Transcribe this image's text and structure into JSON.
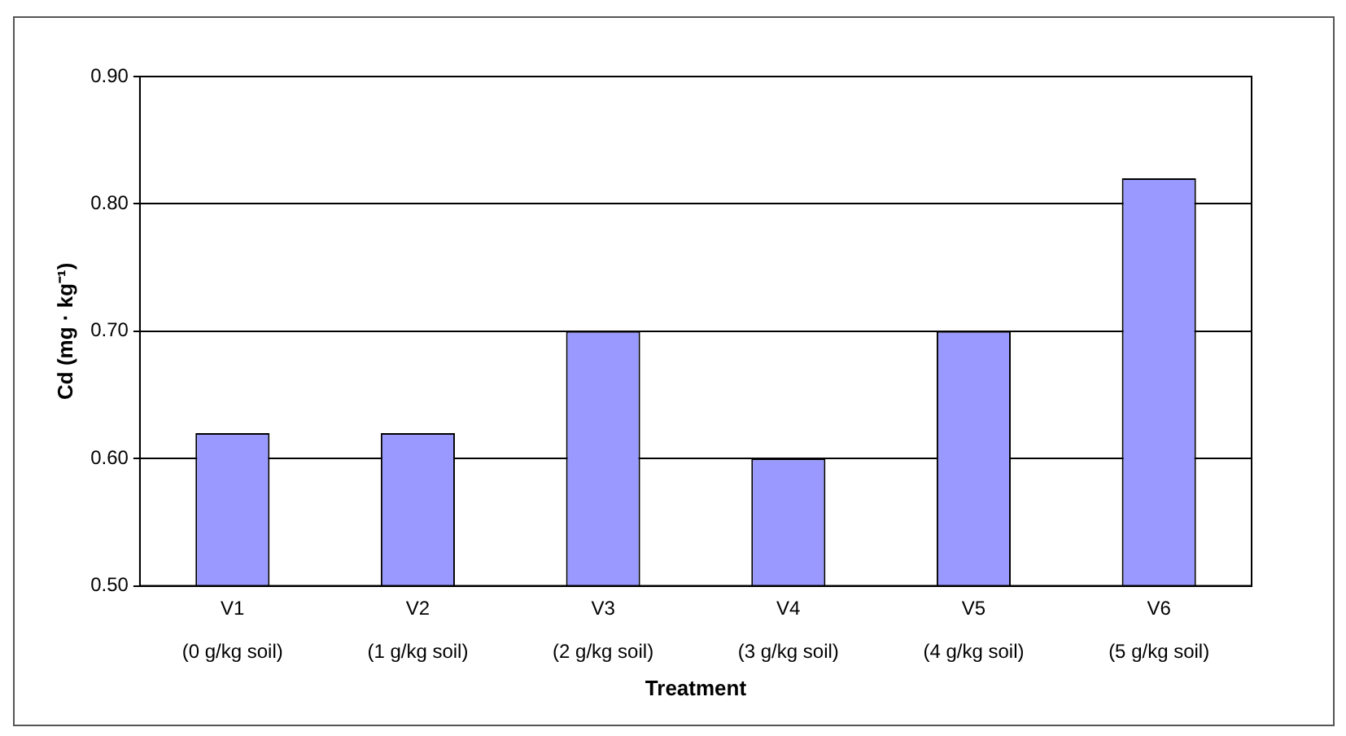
{
  "chart_data": {
    "type": "bar",
    "xlabel": "Treatment",
    "ylabel": "Cd (mg · kg⁻¹)",
    "categories": [
      "V1\n(0 g/kg soil)",
      "V2\n(1 g/kg soil)",
      "V3\n(2 g/kg soil)",
      "V4\n(3 g/kg soil)",
      "V5\n(4 g/kg soil)",
      "V6\n(5 g/kg soil)"
    ],
    "values": [
      0.62,
      0.62,
      0.7,
      0.6,
      0.7,
      0.82
    ],
    "color": "#9999ff",
    "ylim": [
      0.5,
      0.9
    ],
    "yticks": [
      {
        "value": 0.5,
        "label": "0.50"
      },
      {
        "value": 0.6,
        "label": "0.60"
      },
      {
        "value": 0.7,
        "label": "0.70"
      },
      {
        "value": 0.8,
        "label": "0.80"
      },
      {
        "value": 0.9,
        "label": "0.90"
      }
    ],
    "grid": "y",
    "legend": false
  }
}
